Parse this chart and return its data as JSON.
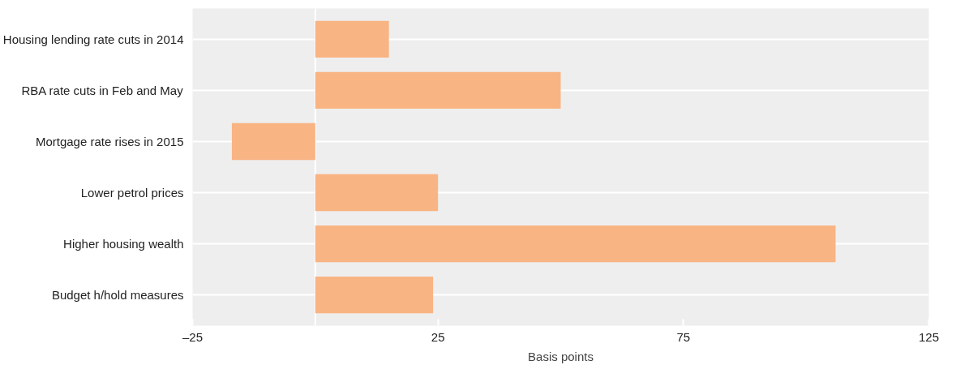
{
  "chart_data": {
    "type": "bar",
    "orientation": "horizontal",
    "xlabel": "Basis points",
    "categories": [
      "Housing lending rate cuts in 2014",
      "RBA rate cuts in Feb and May",
      "Mortgage rate rises in 2015",
      "Lower petrol prices",
      "Higher housing wealth",
      "Budget h/hold measures"
    ],
    "values": [
      15,
      50,
      -17,
      25,
      106,
      24
    ],
    "color": "#f9b483",
    "xlim": [
      -25,
      125
    ],
    "xticks": [
      {
        "value": -25,
        "label": "–25"
      },
      25,
      75,
      125
    ],
    "ref_lines": [
      {
        "axis": "x",
        "value": 0,
        "color": "#ffffff"
      }
    ],
    "grid": "y"
  }
}
